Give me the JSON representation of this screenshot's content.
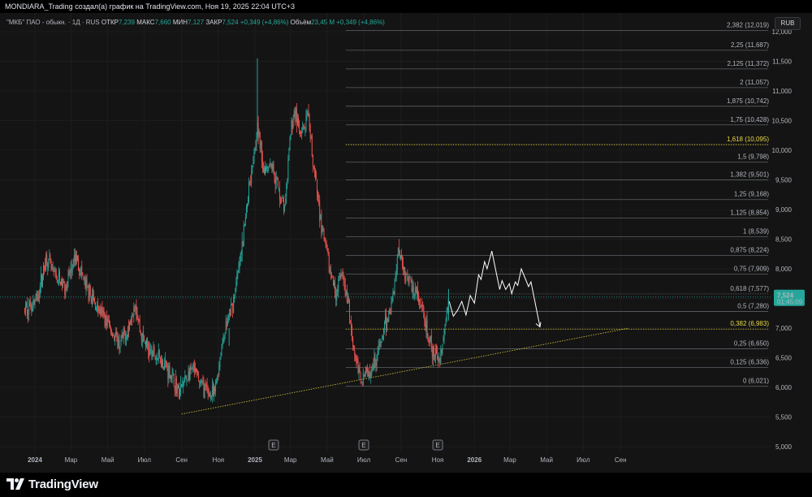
{
  "header": {
    "title": "MONDIARA_Trading создал(а) график на TradingView.com, Ноя 19, 2025 22:04 UTC+3"
  },
  "legend": {
    "symbol": "\"МКБ\" ПАО - обыкн. · 1Д · RUS",
    "open_label": "ОТКР",
    "open_value": "7,239",
    "high_label": "МАКС",
    "high_value": "7,660",
    "low_label": "МИН",
    "low_value": "7,127",
    "close_label": "ЗАКР",
    "close_value": "7,524",
    "change": "+0,349 (+4,86%)",
    "volume_label": "Объём",
    "volume_value": "23,45 M",
    "volume_change": "+0,349 (+4,86%)"
  },
  "currency": "RUB",
  "price_badge": {
    "price": "7,524",
    "countdown": "01:45:09",
    "color": "#26a69a"
  },
  "colors": {
    "up": "#26a69a",
    "down": "#ef5350",
    "fib_highlight": "#e8d845",
    "trendline": "#c8b93a",
    "projection": "#ffffff"
  },
  "earnings_marker": "E",
  "logo": {
    "text": "TradingView",
    "icon": "tradingview-logo-icon"
  },
  "chart_data": {
    "type": "candlestick",
    "y_axis": {
      "scale": "linear",
      "range": [
        4950,
        12150
      ],
      "ticks": [
        "12,000",
        "11,500",
        "11,000",
        "10,500",
        "10,000",
        "9,500",
        "9,000",
        "8,500",
        "8,000",
        "7,500",
        "7,000",
        "6,500",
        "6,000",
        "5,500",
        "5,000"
      ],
      "tick_values": [
        12000,
        11500,
        11000,
        10500,
        10000,
        9500,
        9000,
        8500,
        8000,
        7500,
        7000,
        6500,
        6000,
        5500,
        5000
      ]
    },
    "x_axis": {
      "ticks": [
        "2024",
        "Мар",
        "Май",
        "Июл",
        "Сен",
        "Ноя",
        "2025",
        "Мар",
        "Май",
        "Июл",
        "Сен",
        "Ноя",
        "2026",
        "Мар",
        "Май",
        "Июл",
        "Сен"
      ],
      "tick_dates": [
        "2024-01-01",
        "2024-03-01",
        "2024-05-01",
        "2024-07-01",
        "2024-09-01",
        "2024-11-01",
        "2025-01-01",
        "2025-03-01",
        "2025-05-01",
        "2025-07-01",
        "2025-09-01",
        "2025-11-01",
        "2026-01-01",
        "2026-03-01",
        "2026-05-01",
        "2026-07-01",
        "2026-09-01"
      ],
      "bold_ticks": [
        "2024",
        "2025",
        "2026"
      ]
    },
    "price_path": [
      [
        "2023-12-15",
        7.3
      ],
      [
        "2024-01-05",
        7.5
      ],
      [
        "2024-01-20",
        8.2
      ],
      [
        "2024-02-01",
        7.9
      ],
      [
        "2024-02-20",
        7.7
      ],
      [
        "2024-03-10",
        8.2
      ],
      [
        "2024-03-25",
        7.7
      ],
      [
        "2024-04-10",
        7.4
      ],
      [
        "2024-05-01",
        7.1
      ],
      [
        "2024-05-20",
        6.7
      ],
      [
        "2024-06-05",
        7.0
      ],
      [
        "2024-06-15",
        7.5
      ],
      [
        "2024-06-25",
        6.9
      ],
      [
        "2024-07-10",
        6.6
      ],
      [
        "2024-08-01",
        6.45
      ],
      [
        "2024-08-15",
        6.2
      ],
      [
        "2024-08-28",
        5.9
      ],
      [
        "2024-09-05",
        6.1
      ],
      [
        "2024-09-20",
        6.3
      ],
      [
        "2024-10-10",
        5.95
      ],
      [
        "2024-10-25",
        5.85
      ],
      [
        "2024-11-10",
        6.9
      ],
      [
        "2024-11-25",
        7.4
      ],
      [
        "2024-12-10",
        8.3
      ],
      [
        "2024-12-22",
        9.4
      ],
      [
        "2025-01-05",
        10.4
      ],
      [
        "2025-01-15",
        9.7
      ],
      [
        "2025-01-28",
        9.8
      ],
      [
        "2025-02-10",
        9.3
      ],
      [
        "2025-02-20",
        9.0
      ],
      [
        "2025-03-01",
        10.3
      ],
      [
        "2025-03-08",
        10.7
      ],
      [
        "2025-03-18",
        10.2
      ],
      [
        "2025-03-30",
        10.55
      ],
      [
        "2025-04-10",
        9.6
      ],
      [
        "2025-04-22",
        8.7
      ],
      [
        "2025-05-05",
        8.0
      ],
      [
        "2025-05-15",
        7.6
      ],
      [
        "2025-05-25",
        7.9
      ],
      [
        "2025-06-05",
        7.4
      ],
      [
        "2025-06-15",
        6.6
      ],
      [
        "2025-06-25",
        6.15
      ],
      [
        "2025-07-10",
        6.3
      ],
      [
        "2025-07-25",
        6.6
      ],
      [
        "2025-08-05",
        7.0
      ],
      [
        "2025-08-18",
        7.5
      ],
      [
        "2025-08-28",
        8.4
      ],
      [
        "2025-09-08",
        7.9
      ],
      [
        "2025-09-25",
        7.6
      ],
      [
        "2025-10-05",
        7.3
      ],
      [
        "2025-10-15",
        6.9
      ],
      [
        "2025-10-25",
        6.5
      ],
      [
        "2025-11-05",
        6.55
      ],
      [
        "2025-11-12",
        6.9
      ],
      [
        "2025-11-19",
        7.524
      ]
    ],
    "projection_path": [
      [
        "2025-11-20",
        7.45
      ],
      [
        "2025-11-27",
        7.2
      ],
      [
        "2025-12-04",
        7.3
      ],
      [
        "2025-12-11",
        7.45
      ],
      [
        "2025-12-18",
        7.22
      ],
      [
        "2025-12-25",
        7.55
      ],
      [
        "2026-01-01",
        7.42
      ],
      [
        "2026-01-08",
        7.9
      ],
      [
        "2026-01-12",
        7.82
      ],
      [
        "2026-01-18",
        8.12
      ],
      [
        "2026-01-22",
        8.0
      ],
      [
        "2026-01-30",
        8.3
      ],
      [
        "2026-02-06",
        7.95
      ],
      [
        "2026-02-12",
        7.65
      ],
      [
        "2026-02-16",
        7.8
      ],
      [
        "2026-02-22",
        7.65
      ],
      [
        "2026-02-28",
        7.75
      ],
      [
        "2026-03-04",
        7.58
      ],
      [
        "2026-03-10",
        7.78
      ],
      [
        "2026-03-14",
        7.72
      ],
      [
        "2026-03-20",
        8.0
      ],
      [
        "2026-03-26",
        7.85
      ],
      [
        "2026-04-01",
        7.7
      ],
      [
        "2026-04-05",
        7.78
      ],
      [
        "2026-04-20",
        7.02
      ]
    ],
    "trendline": {
      "from": [
        "2024-09-01",
        5.55
      ],
      "to": [
        "2026-09-15",
        7.0
      ]
    },
    "fib_levels": [
      {
        "label": "2,382 (12,019)",
        "value": 12019,
        "dashed": false
      },
      {
        "label": "2,25 (11,687)",
        "value": 11687,
        "dashed": false
      },
      {
        "label": "2,125 (11,372)",
        "value": 11372,
        "dashed": false
      },
      {
        "label": "2 (11,057)",
        "value": 11057,
        "dashed": false
      },
      {
        "label": "1,875 (10,742)",
        "value": 10742,
        "dashed": false
      },
      {
        "label": "1,75 (10,428)",
        "value": 10428,
        "dashed": false
      },
      {
        "label": "1,618 (10,095)",
        "value": 10095,
        "dashed": true,
        "highlight": true
      },
      {
        "label": "1,5 (9,798)",
        "value": 9798,
        "dashed": false
      },
      {
        "label": "1,382 (9,501)",
        "value": 9501,
        "dashed": false
      },
      {
        "label": "1,25 (9,168)",
        "value": 9168,
        "dashed": false
      },
      {
        "label": "1,125 (8,854)",
        "value": 8854,
        "dashed": false
      },
      {
        "label": "1 (8,539)",
        "value": 8539,
        "dashed": false
      },
      {
        "label": "0,875 (8,224)",
        "value": 8224,
        "dashed": false
      },
      {
        "label": "0,75 (7,909)",
        "value": 7909,
        "dashed": false
      },
      {
        "label": "0,618 (7,577)",
        "value": 7577,
        "dashed": true
      },
      {
        "label": "0,5 (7,280)",
        "value": 7280,
        "dashed": false
      },
      {
        "label": "0,382 (6,983)",
        "value": 6983,
        "dashed": true,
        "highlight": true
      },
      {
        "label": "0,25 (6,650)",
        "value": 6650,
        "dashed": false
      },
      {
        "label": "0,125 (6,336)",
        "value": 6336,
        "dashed": false
      },
      {
        "label": "0 (6,021)",
        "value": 6021,
        "dashed": false
      }
    ],
    "earnings_dates": [
      "2025-02-01",
      "2025-07-01",
      "2025-11-01"
    ]
  }
}
